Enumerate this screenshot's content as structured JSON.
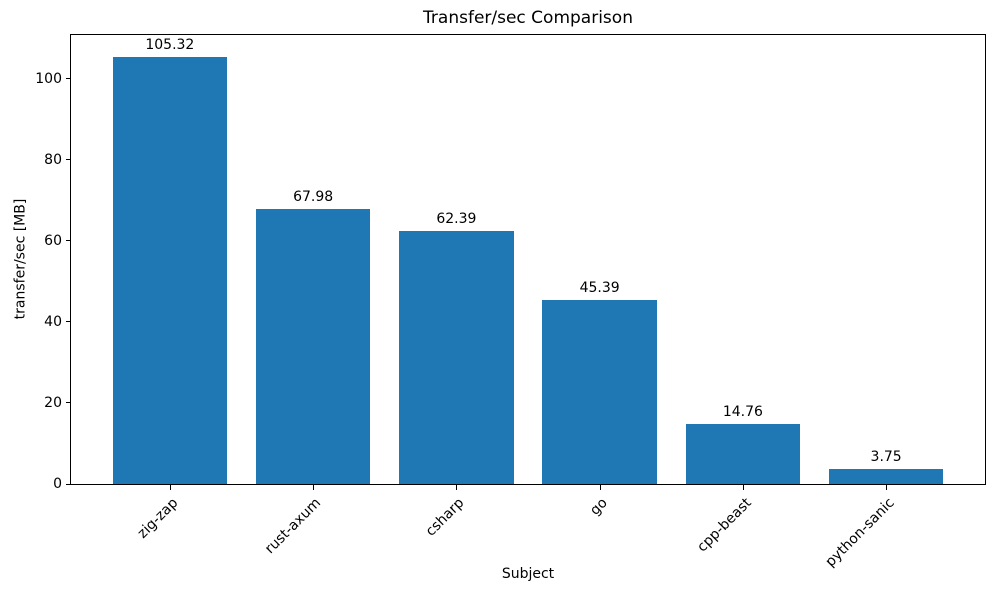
{
  "chart_data": {
    "type": "bar",
    "title": "Transfer/sec Comparison",
    "xlabel": "Subject",
    "ylabel": "transfer/sec [MB]",
    "categories": [
      "zig-zap",
      "rust-axum",
      "csharp",
      "go",
      "cpp-beast",
      "python-sanic"
    ],
    "values": [
      105.32,
      67.98,
      62.39,
      45.39,
      14.76,
      3.75
    ],
    "value_labels": [
      "105.32",
      "67.98",
      "62.39",
      "45.39",
      "14.76",
      "3.75"
    ],
    "yticks": [
      0,
      20,
      40,
      60,
      80,
      100
    ],
    "ylim": [
      0,
      110.8
    ],
    "xtick_rotation_deg": 45,
    "grid": false,
    "legend": "none",
    "bar_color": "#1f77b4",
    "text_color": "#000000",
    "spine_color": "#000000",
    "background_color": "#ffffff"
  }
}
